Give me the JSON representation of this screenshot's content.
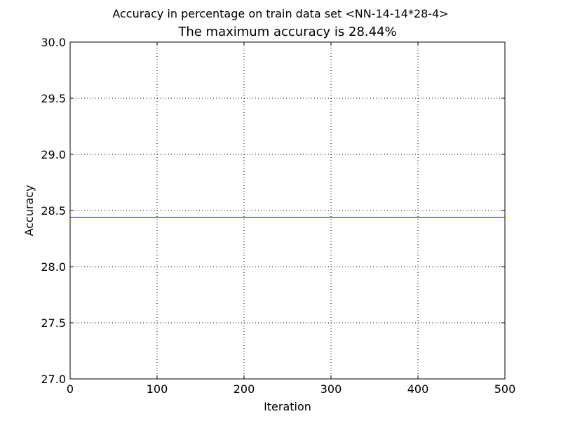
{
  "figure": {
    "suptitle": "Accuracy in percentage on train data set <NN-14-14*28-4>",
    "title": "The maximum accuracy is 28.44%"
  },
  "chart_data": {
    "type": "line",
    "suptitle": "Accuracy in percentage on train data set <NN-14-14*28-4>",
    "title": "The maximum accuracy is 28.44%",
    "xlabel": "Iteration",
    "ylabel": "Accuracy",
    "xlim": [
      0,
      500
    ],
    "ylim": [
      27.0,
      30.0
    ],
    "xticks": [
      0,
      100,
      200,
      300,
      400,
      500
    ],
    "yticks": [
      27.0,
      27.5,
      28.0,
      28.5,
      29.0,
      29.5,
      30.0
    ],
    "ytick_labels": [
      "27.0",
      "27.5",
      "28.0",
      "28.5",
      "29.0",
      "29.5",
      "30.0"
    ],
    "grid": true,
    "series": [
      {
        "color": "#0000ff",
        "x": [
          0,
          500
        ],
        "y": [
          28.44,
          28.44
        ]
      }
    ]
  }
}
